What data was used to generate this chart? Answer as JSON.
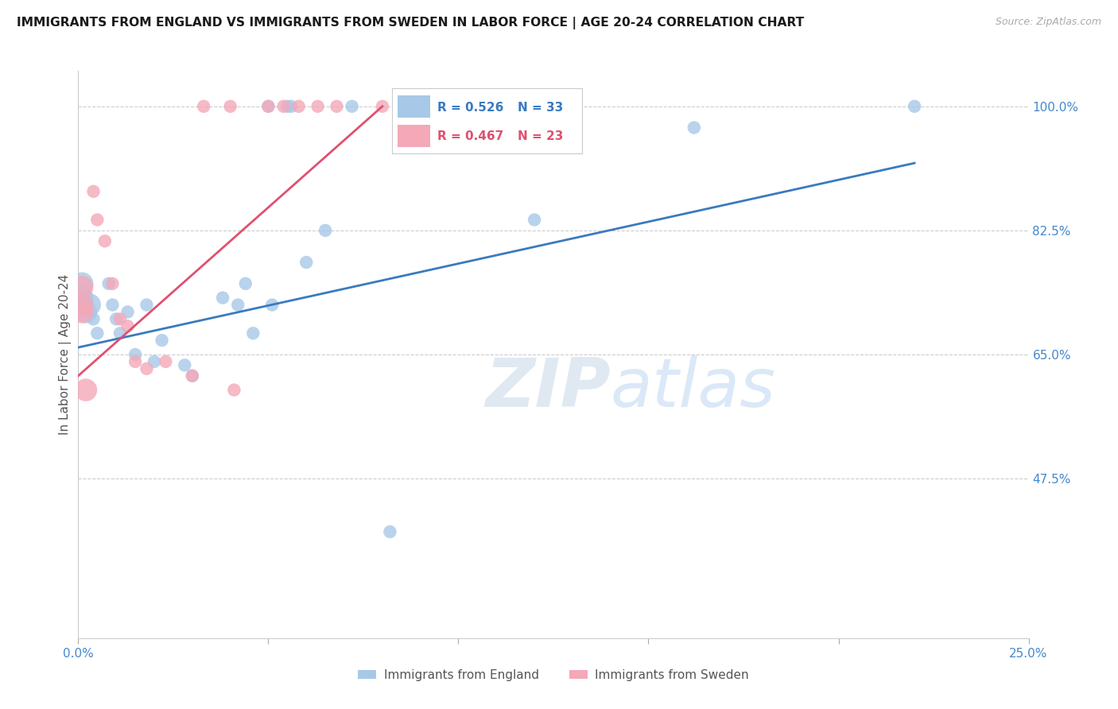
{
  "title": "IMMIGRANTS FROM ENGLAND VS IMMIGRANTS FROM SWEDEN IN LABOR FORCE | AGE 20-24 CORRELATION CHART",
  "source": "Source: ZipAtlas.com",
  "ylabel": "In Labor Force | Age 20-24",
  "xlim": [
    0.0,
    0.25
  ],
  "ylim": [
    0.25,
    1.05
  ],
  "xticks": [
    0.0,
    0.05,
    0.1,
    0.15,
    0.2,
    0.25
  ],
  "xtick_labels": [
    "0.0%",
    "",
    "",
    "",
    "",
    "25.0%"
  ],
  "yticks": [
    1.0,
    0.825,
    0.65,
    0.475
  ],
  "ytick_labels": [
    "100.0%",
    "82.5%",
    "65.0%",
    "47.5%"
  ],
  "england_R": "0.526",
  "england_N": "33",
  "sweden_R": "0.467",
  "sweden_N": "23",
  "england_color": "#a8c8e8",
  "sweden_color": "#f4a8b8",
  "england_line_color": "#3a7abf",
  "sweden_line_color": "#e05070",
  "tick_color": "#4488cc",
  "grid_color": "#cccccc",
  "background_color": "#ffffff",
  "england_x": [
    0.001,
    0.001,
    0.001,
    0.002,
    0.003,
    0.004,
    0.005,
    0.008,
    0.009,
    0.01,
    0.011,
    0.013,
    0.015,
    0.018,
    0.02,
    0.022,
    0.028,
    0.03,
    0.038,
    0.042,
    0.044,
    0.046,
    0.05,
    0.051,
    0.055,
    0.056,
    0.06,
    0.065,
    0.072,
    0.082,
    0.12,
    0.162,
    0.22
  ],
  "england_y": [
    0.75,
    0.73,
    0.72,
    0.71,
    0.72,
    0.7,
    0.68,
    0.75,
    0.72,
    0.7,
    0.68,
    0.71,
    0.65,
    0.72,
    0.64,
    0.67,
    0.635,
    0.62,
    0.73,
    0.72,
    0.75,
    0.68,
    1.0,
    0.72,
    1.0,
    1.0,
    0.78,
    0.825,
    1.0,
    0.4,
    0.84,
    0.97,
    1.0
  ],
  "sweden_x": [
    0.001,
    0.001,
    0.001,
    0.002,
    0.004,
    0.005,
    0.007,
    0.009,
    0.011,
    0.013,
    0.015,
    0.018,
    0.023,
    0.03,
    0.033,
    0.04,
    0.041,
    0.05,
    0.054,
    0.058,
    0.063,
    0.068,
    0.08
  ],
  "sweden_y": [
    0.745,
    0.72,
    0.71,
    0.6,
    0.88,
    0.84,
    0.81,
    0.75,
    0.7,
    0.69,
    0.64,
    0.63,
    0.64,
    0.62,
    1.0,
    1.0,
    0.6,
    1.0,
    1.0,
    1.0,
    1.0,
    1.0,
    1.0
  ],
  "england_line_x": [
    0.0,
    0.22
  ],
  "england_line_y": [
    0.66,
    0.92
  ],
  "sweden_line_x": [
    0.0,
    0.08
  ],
  "sweden_line_y": [
    0.62,
    1.0
  ],
  "base_size": 140,
  "large_size": 420,
  "large_threshold": 0.003
}
